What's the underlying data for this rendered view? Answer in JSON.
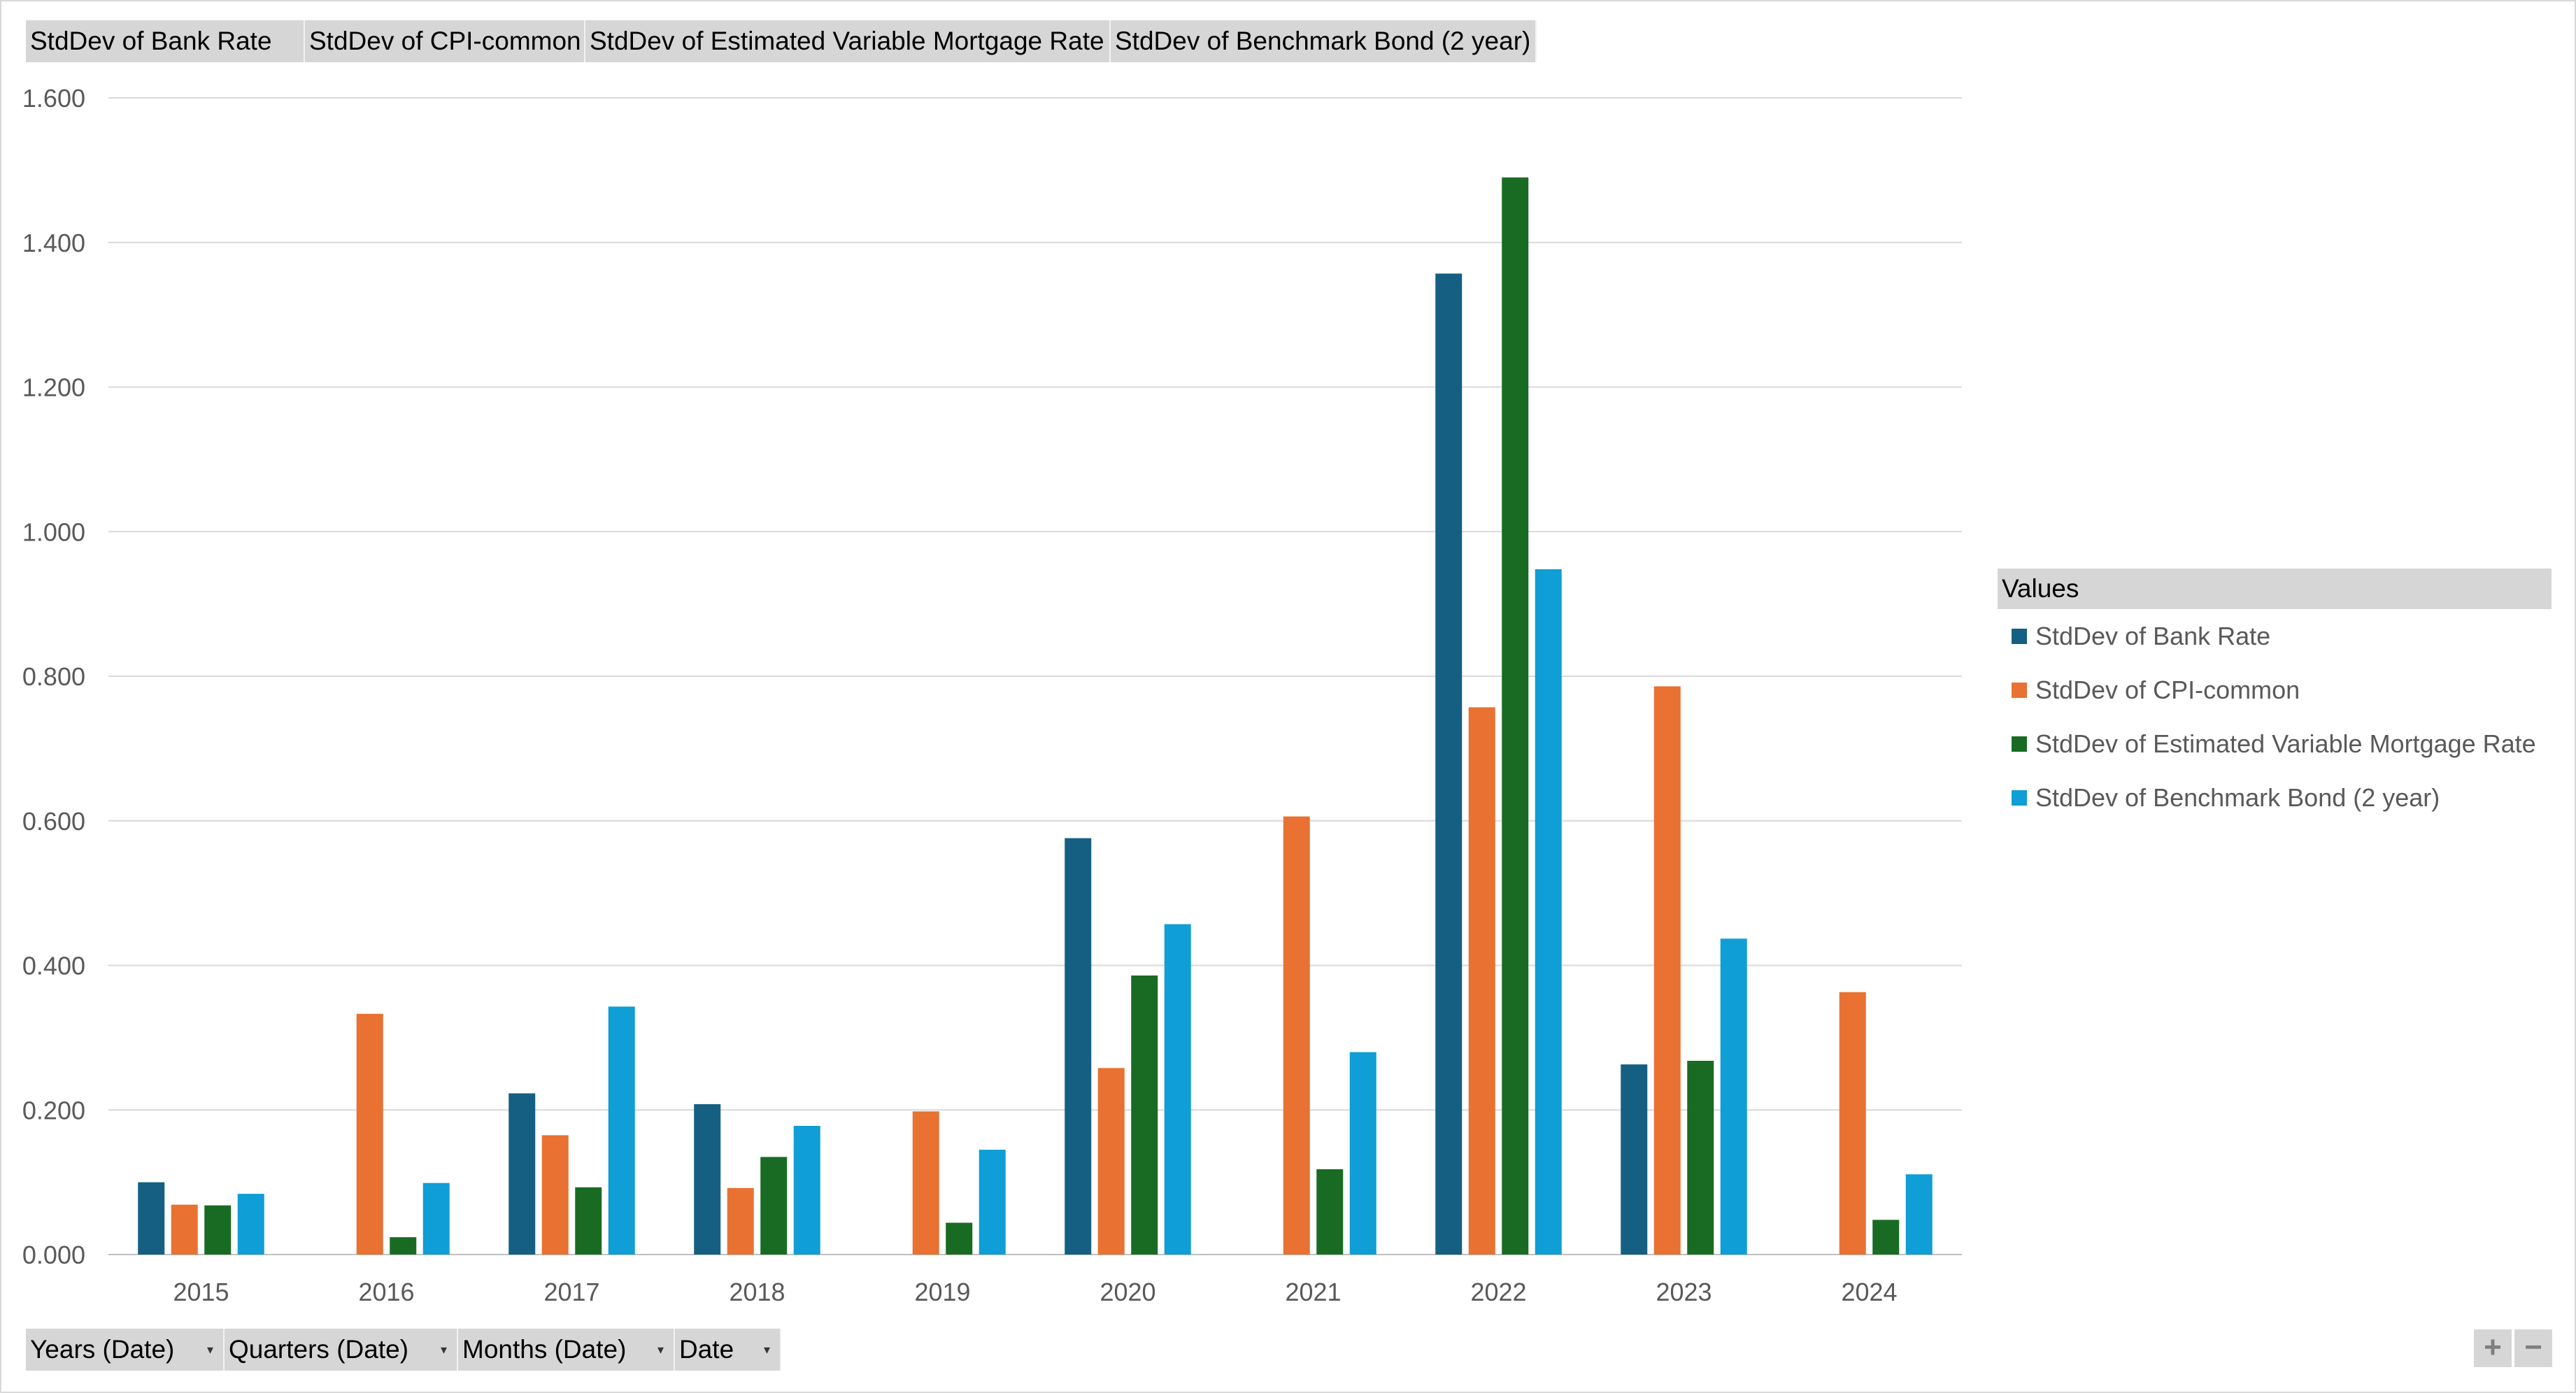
{
  "value_buttons": [
    "StdDev of Bank Rate",
    "StdDev of CPI-common",
    "StdDev of Estimated Variable Mortgage Rate",
    "StdDev of Benchmark Bond (2 year)"
  ],
  "field_buttons": [
    "Years (Date)",
    "Quarters (Date)",
    "Months (Date)",
    "Date"
  ],
  "legend": {
    "title": "Values"
  },
  "zoom": {
    "plus": "+",
    "minus": "−"
  },
  "colors": {
    "bank_rate": "#156082",
    "cpi_common": "#e97132",
    "mortgage": "#196b24",
    "bond": "#0f9ed5",
    "gridline": "#d9d9d9",
    "axis_text": "#595959"
  },
  "chart_data": {
    "type": "bar",
    "title": "",
    "xlabel": "",
    "ylabel": "",
    "ylim": [
      0,
      1.6
    ],
    "yticks": [
      "0.000",
      "0.200",
      "0.400",
      "0.600",
      "0.800",
      "1.000",
      "1.200",
      "1.400",
      "1.600"
    ],
    "grid": true,
    "legend_position": "right",
    "categories": [
      "2015",
      "2016",
      "2017",
      "2018",
      "2019",
      "2020",
      "2021",
      "2022",
      "2023",
      "2024"
    ],
    "series": [
      {
        "name": "StdDev of Bank Rate",
        "color": "#156082",
        "values": [
          0.1,
          null,
          0.223,
          0.208,
          null,
          0.576,
          null,
          1.357,
          0.263,
          null
        ]
      },
      {
        "name": "StdDev of CPI-common",
        "color": "#e97132",
        "values": [
          0.069,
          0.333,
          0.165,
          0.092,
          0.198,
          0.258,
          0.606,
          0.757,
          0.786,
          0.363
        ]
      },
      {
        "name": "StdDev of Estimated Variable Mortgage Rate",
        "color": "#196b24",
        "values": [
          0.068,
          0.024,
          0.093,
          0.135,
          0.044,
          0.386,
          0.118,
          1.49,
          0.268,
          0.048
        ]
      },
      {
        "name": "StdDev of Benchmark Bond (2 year)",
        "color": "#0f9ed5",
        "values": [
          0.084,
          0.099,
          0.343,
          0.178,
          0.145,
          0.457,
          0.28,
          0.948,
          0.437,
          0.111
        ]
      }
    ]
  }
}
